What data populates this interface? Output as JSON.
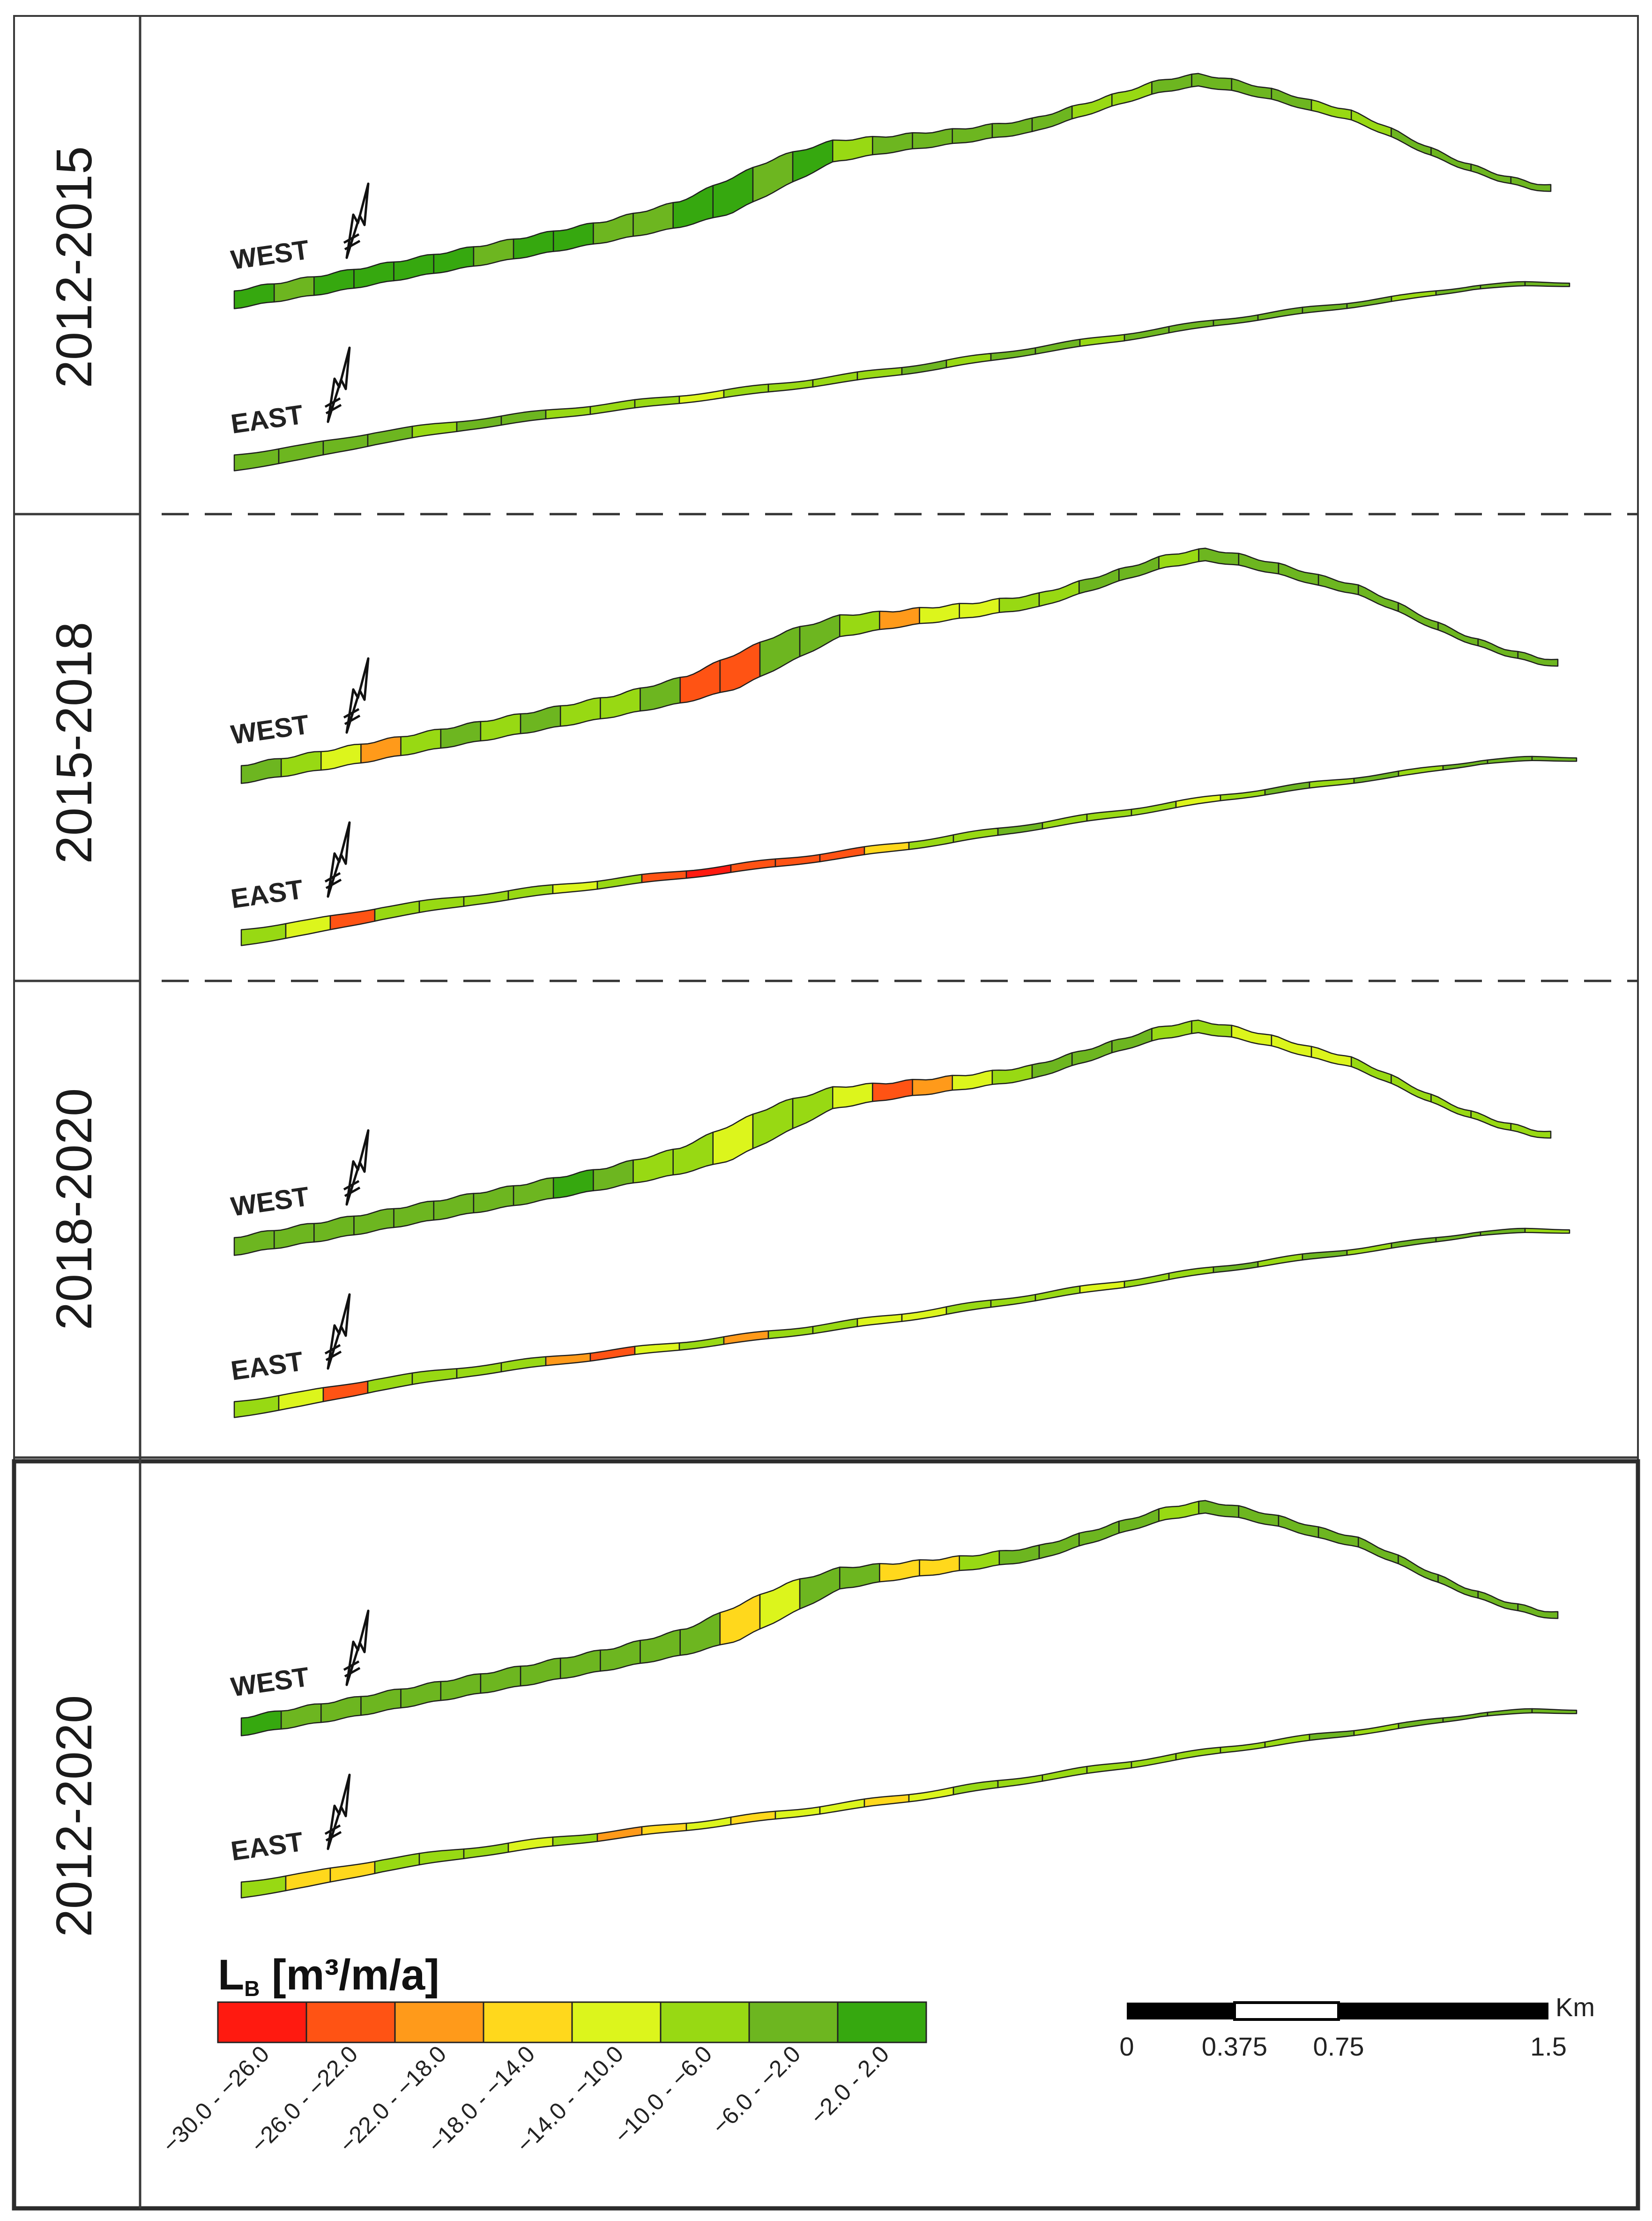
{
  "map": {
    "colors": {
      "c1": "#ff1a10",
      "c2": "#ff5314",
      "c3": "#ff9a1a",
      "c4": "#ffd81c",
      "c5": "#dcf51c",
      "c6": "#98d913",
      "c7": "#6db620",
      "c8": "#36a80f"
    },
    "periods": [
      {
        "label": "2012-2015",
        "west": {
          "label": "WEST",
          "segments": [
            "c8",
            "c7",
            "c8",
            "c8",
            "c8",
            "c8",
            "c7",
            "c8",
            "c8",
            "c7",
            "c7",
            "c8",
            "c8",
            "c7",
            "c8",
            "c6",
            "c7",
            "c7",
            "c7",
            "c7",
            "c7",
            "c6",
            "c6",
            "c7",
            "c7",
            "c7",
            "c7",
            "c6",
            "c6",
            "c7",
            "c7",
            "c7",
            "c7"
          ]
        },
        "east": {
          "label": "EAST",
          "segments": [
            "c7",
            "c7",
            "c7",
            "c7",
            "c6",
            "c7",
            "c7",
            "c6",
            "c6",
            "c6",
            "c5",
            "c6",
            "c6",
            "c6",
            "c6",
            "c7",
            "c6",
            "c7",
            "c7",
            "c6",
            "c7",
            "c7",
            "c7",
            "c7",
            "c7",
            "c7",
            "c6",
            "c7",
            "c7",
            "c7"
          ]
        }
      },
      {
        "label": "2015-2018",
        "west": {
          "label": "WEST",
          "segments": [
            "c7",
            "c6",
            "c5",
            "c3",
            "c6",
            "c7",
            "c6",
            "c7",
            "c6",
            "c6",
            "c7",
            "c2",
            "c2",
            "c7",
            "c7",
            "c6",
            "c3",
            "c5",
            "c5",
            "c6",
            "c6",
            "c7",
            "c7",
            "c6",
            "c7",
            "c7",
            "c7",
            "c7",
            "c7",
            "c7",
            "c7",
            "c7",
            "c7"
          ]
        },
        "east": {
          "label": "EAST",
          "segments": [
            "c6",
            "c5",
            "c2",
            "c6",
            "c6",
            "c6",
            "c6",
            "c5",
            "c6",
            "c2",
            "c1",
            "c2",
            "c2",
            "c2",
            "c4",
            "c6",
            "c6",
            "c7",
            "c6",
            "c6",
            "c6",
            "c5",
            "c6",
            "c7",
            "c6",
            "c7",
            "c6",
            "c7",
            "c7",
            "c7"
          ]
        }
      },
      {
        "label": "2018-2020",
        "west": {
          "label": "WEST",
          "segments": [
            "c7",
            "c7",
            "c7",
            "c7",
            "c7",
            "c7",
            "c7",
            "c7",
            "c8",
            "c7",
            "c6",
            "c6",
            "c5",
            "c6",
            "c6",
            "c5",
            "c2",
            "c3",
            "c5",
            "c6",
            "c7",
            "c7",
            "c7",
            "c6",
            "c6",
            "c5",
            "c5",
            "c5",
            "c6",
            "c6",
            "c6",
            "c6",
            "c6"
          ]
        },
        "east": {
          "label": "EAST",
          "segments": [
            "c6",
            "c5",
            "c2",
            "c6",
            "c6",
            "c6",
            "c6",
            "c3",
            "c2",
            "c5",
            "c6",
            "c3",
            "c6",
            "c6",
            "c5",
            "c5",
            "c6",
            "c6",
            "c6",
            "c5",
            "c6",
            "c6",
            "c7",
            "c6",
            "c7",
            "c6",
            "c7",
            "c7",
            "c7",
            "c6"
          ]
        }
      },
      {
        "label": "2012-2020",
        "west": {
          "label": "WEST",
          "segments": [
            "c8",
            "c7",
            "c7",
            "c7",
            "c7",
            "c7",
            "c7",
            "c7",
            "c7",
            "c7",
            "c7",
            "c7",
            "c4",
            "c5",
            "c7",
            "c7",
            "c4",
            "c4",
            "c6",
            "c7",
            "c7",
            "c7",
            "c7",
            "c6",
            "c7",
            "c7",
            "c7",
            "c7",
            "c7",
            "c7",
            "c7",
            "c7",
            "c7"
          ]
        },
        "east": {
          "label": "EAST",
          "segments": [
            "c6",
            "c4",
            "c4",
            "c6",
            "c6",
            "c6",
            "c5",
            "c6",
            "c3",
            "c4",
            "c5",
            "c4",
            "c5",
            "c5",
            "c4",
            "c5",
            "c6",
            "c6",
            "c6",
            "c6",
            "c6",
            "c6",
            "c6",
            "c6",
            "c7",
            "c6",
            "c7",
            "c7",
            "c7",
            "c7"
          ]
        }
      }
    ]
  },
  "legend": {
    "title_main": "L",
    "title_sub": "B",
    "title_rest": " [m³/m/a]",
    "classes": [
      {
        "label": "−30.0 - −26.0",
        "color": "#ff1a10"
      },
      {
        "label": "−26.0 - −22.0",
        "color": "#ff5314"
      },
      {
        "label": "−22.0 - −18.0",
        "color": "#ff9a1a"
      },
      {
        "label": "−18.0 - −14.0",
        "color": "#ffd81c"
      },
      {
        "label": "−14.0 - −10.0",
        "color": "#dcf51c"
      },
      {
        "label": "−10.0 - −6.0",
        "color": "#98d913"
      },
      {
        "label": "−6.0 - −2.0",
        "color": "#6db620"
      },
      {
        "label": "−2.0 - 2.0",
        "color": "#36a80f"
      }
    ]
  },
  "scale_bar": {
    "unit": "Km",
    "ticks": [
      "0",
      "0.375",
      "0.75",
      "1.5"
    ]
  }
}
